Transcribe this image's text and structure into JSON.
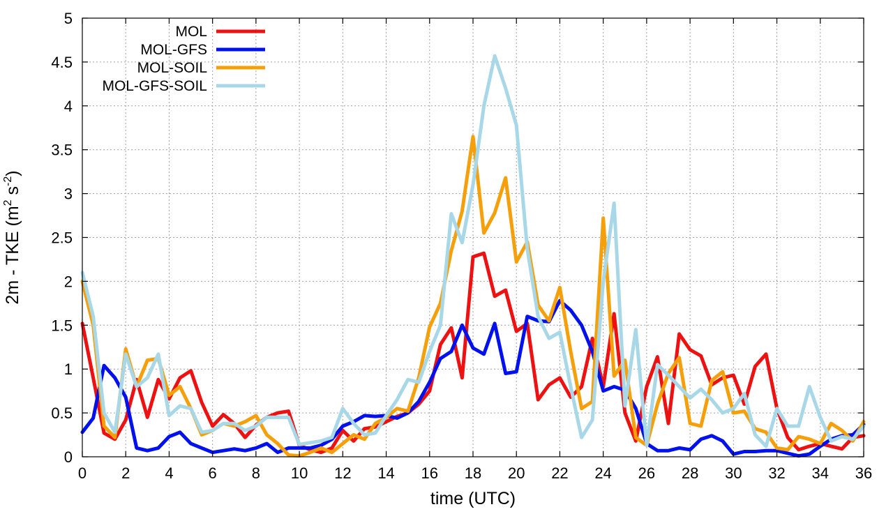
{
  "chart_data": {
    "type": "line",
    "title": "",
    "xlabel": "time (UTC)",
    "ylabel": {
      "main": "2m - TKE (m",
      "sup1": "2",
      "mid": " s",
      "sup2": "-2",
      "end": ")"
    },
    "xlim": [
      0,
      36
    ],
    "ylim": [
      0,
      5
    ],
    "xticks": [
      0,
      2,
      4,
      6,
      8,
      10,
      12,
      14,
      16,
      18,
      20,
      22,
      24,
      26,
      28,
      30,
      32,
      34,
      36
    ],
    "xtick_labels": [
      "0",
      "2",
      "4",
      "6",
      "8",
      "10",
      "12",
      "14",
      "16",
      "18",
      "20",
      "22",
      "24",
      "26",
      "28",
      "30",
      "32",
      "34",
      "36"
    ],
    "yticks": [
      0,
      0.5,
      1,
      1.5,
      2,
      2.5,
      3,
      3.5,
      4,
      4.5,
      5
    ],
    "ytick_labels": [
      "0",
      "0.5",
      "1",
      "1.5",
      "2",
      "2.5",
      "3",
      "3.5",
      "4",
      "4.5",
      "5"
    ],
    "grid": true,
    "legend_position": "top-left",
    "x": [
      0,
      0.5,
      1,
      1.5,
      2,
      2.5,
      3,
      3.5,
      4,
      4.5,
      5,
      5.5,
      6,
      6.5,
      7,
      7.5,
      8,
      8.5,
      9,
      9.5,
      10,
      10.5,
      11,
      11.5,
      12,
      12.5,
      13,
      13.5,
      14,
      14.5,
      15,
      15.5,
      16,
      16.5,
      17,
      17.5,
      18,
      18.5,
      19,
      19.5,
      20,
      20.5,
      21,
      21.5,
      22,
      22.5,
      23,
      23.5,
      24,
      24.5,
      25,
      25.5,
      26,
      26.5,
      27,
      27.5,
      28,
      28.5,
      29,
      29.5,
      30,
      30.5,
      31,
      31.5,
      32,
      32.5,
      33,
      33.5,
      34,
      34.5,
      35,
      35.5,
      36
    ],
    "series": [
      {
        "name": "MOL",
        "color": "#ee1111",
        "values": [
          1.52,
          0.9,
          0.27,
          0.2,
          0.42,
          0.88,
          0.45,
          0.88,
          0.66,
          0.9,
          0.98,
          0.62,
          0.35,
          0.48,
          0.38,
          0.22,
          0.36,
          0.45,
          0.5,
          0.52,
          0.13,
          0.08,
          0.05,
          0.1,
          0.3,
          0.18,
          0.32,
          0.34,
          0.4,
          0.46,
          0.5,
          0.6,
          0.75,
          1.28,
          1.47,
          0.9,
          2.28,
          2.32,
          1.83,
          1.9,
          1.43,
          1.52,
          0.65,
          0.82,
          0.9,
          0.68,
          0.8,
          1.35,
          0.8,
          1.63,
          0.5,
          0.18,
          0.8,
          1.14,
          0.38,
          1.4,
          1.22,
          1.15,
          0.82,
          0.9,
          0.93,
          0.6,
          1.03,
          1.17,
          0.55,
          0.22,
          0.08,
          0.12,
          0.15,
          0.12,
          0.09,
          0.22,
          0.24
        ]
      },
      {
        "name": "MOL-GFS",
        "color": "#0011ee",
        "values": [
          0.28,
          0.44,
          1.04,
          0.9,
          0.68,
          0.1,
          0.07,
          0.1,
          0.23,
          0.28,
          0.15,
          0.1,
          0.05,
          0.07,
          0.09,
          0.07,
          0.1,
          0.15,
          0.05,
          0.1,
          0.1,
          0.1,
          0.13,
          0.2,
          0.35,
          0.4,
          0.47,
          0.46,
          0.47,
          0.44,
          0.5,
          0.63,
          0.85,
          1.12,
          1.2,
          1.5,
          1.24,
          1.17,
          1.52,
          0.95,
          0.97,
          1.6,
          1.55,
          1.54,
          1.78,
          1.67,
          1.5,
          1.2,
          0.75,
          0.8,
          0.76,
          0.55,
          0.15,
          0.07,
          0.07,
          0.1,
          0.08,
          0.2,
          0.24,
          0.18,
          0.03,
          0.06,
          0.06,
          0.07,
          0.07,
          0.04,
          0.01,
          0.03,
          0.12,
          0.2,
          0.24,
          0.25,
          0.37
        ]
      },
      {
        "name": "MOL-SOIL",
        "color": "#f5a00a",
        "values": [
          2.0,
          1.5,
          0.35,
          0.22,
          1.23,
          0.8,
          1.1,
          1.12,
          0.7,
          0.8,
          0.55,
          0.25,
          0.3,
          0.38,
          0.35,
          0.4,
          0.47,
          0.25,
          0.15,
          0.02,
          0.01,
          0.05,
          0.1,
          0.05,
          0.15,
          0.25,
          0.2,
          0.38,
          0.45,
          0.55,
          0.52,
          0.9,
          1.48,
          1.75,
          2.35,
          2.8,
          3.65,
          2.55,
          2.78,
          3.18,
          2.22,
          2.45,
          1.73,
          1.55,
          1.93,
          1.2,
          0.55,
          0.63,
          2.72,
          0.92,
          1.1,
          0.22,
          0.13,
          0.6,
          0.95,
          1.13,
          0.38,
          0.35,
          0.87,
          0.97,
          0.5,
          0.52,
          0.32,
          0.28,
          0.1,
          0.08,
          0.23,
          0.2,
          0.15,
          0.38,
          0.3,
          0.18,
          0.4
        ]
      },
      {
        "name": "MOL-GFS-SOIL",
        "color": "#a8d8e8",
        "values": [
          2.1,
          1.6,
          0.5,
          0.28,
          1.17,
          0.8,
          0.9,
          1.17,
          0.47,
          0.58,
          0.55,
          0.28,
          0.3,
          0.38,
          0.38,
          0.3,
          0.35,
          0.45,
          0.45,
          0.45,
          0.14,
          0.16,
          0.18,
          0.22,
          0.55,
          0.38,
          0.25,
          0.27,
          0.47,
          0.65,
          0.88,
          0.85,
          1.2,
          1.5,
          2.77,
          2.44,
          3.1,
          4.0,
          4.57,
          4.2,
          3.78,
          2.37,
          1.6,
          1.35,
          1.42,
          0.8,
          0.22,
          0.42,
          2.0,
          2.89,
          0.58,
          1.45,
          0.13,
          1.05,
          0.93,
          0.8,
          0.67,
          0.77,
          0.65,
          0.5,
          0.55,
          0.72,
          0.25,
          0.12,
          0.55,
          0.35,
          0.35,
          0.8,
          0.45,
          0.18,
          0.23,
          0.2,
          0.35
        ]
      }
    ]
  }
}
